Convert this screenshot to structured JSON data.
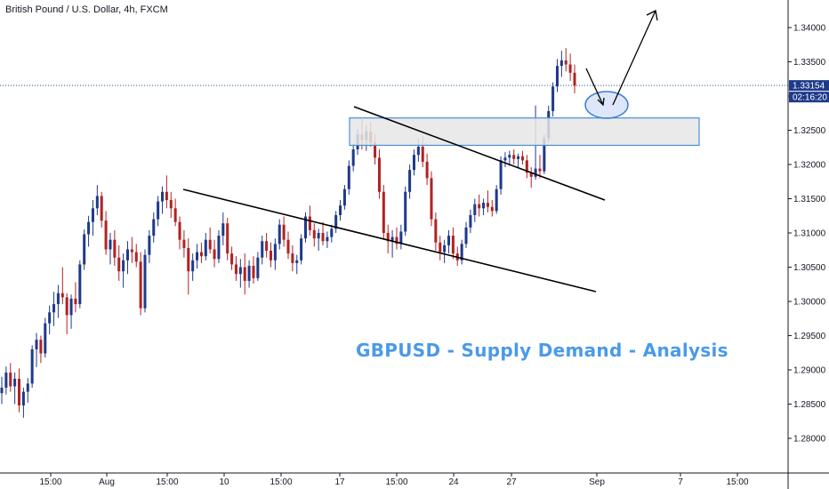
{
  "header": {
    "symbol_title": "British Pound / U.S. Dollar, 4h, FXCM"
  },
  "annotation": {
    "title": "GBPUSD - Supply Demand - Analysis"
  },
  "colors": {
    "up": "#1e3a8a",
    "down": "#b22222",
    "zone_border": "#4a90d9",
    "zone_fill": "#e6e6e6",
    "title": "#4a9ae8",
    "price_label_bg": "#1e3a8a"
  },
  "chart_data": {
    "type": "candlestick",
    "symbol": "GBPUSD",
    "timeframe": "4h",
    "ylim": [
      1.275,
      1.3425
    ],
    "y_ticks": [
      "1.28000",
      "1.28500",
      "1.29000",
      "1.29500",
      "1.30000",
      "1.30500",
      "1.31000",
      "1.31500",
      "1.32000",
      "1.32500",
      "1.33000",
      "1.33500",
      "1.34000"
    ],
    "x_ticks": [
      "15:00",
      "Aug",
      "15:00",
      "10",
      "15:00",
      "17",
      "15:00",
      "24",
      "27",
      "Sep",
      "7",
      "15:00"
    ],
    "last_price": "1.33154",
    "countdown": "02:16:20",
    "supply_demand_zone": [
      1.3228,
      1.3268
    ],
    "candles": [
      [
        1.2866,
        1.289,
        1.285,
        1.2874
      ],
      [
        1.2874,
        1.2905,
        1.2864,
        1.2896
      ],
      [
        1.2896,
        1.291,
        1.2868,
        1.2876
      ],
      [
        1.2876,
        1.2896,
        1.285,
        1.2887
      ],
      [
        1.2887,
        1.2902,
        1.2838,
        1.2848
      ],
      [
        1.2848,
        1.2874,
        1.283,
        1.2868
      ],
      [
        1.2868,
        1.2888,
        1.2852,
        1.288
      ],
      [
        1.288,
        1.2936,
        1.2874,
        1.293
      ],
      [
        1.293,
        1.2954,
        1.2904,
        1.2944
      ],
      [
        1.2944,
        1.295,
        1.291,
        1.2924
      ],
      [
        1.2924,
        1.2976,
        1.2918,
        1.2968
      ],
      [
        1.2968,
        1.2994,
        1.2952,
        1.2984
      ],
      [
        1.2984,
        1.3014,
        1.2964,
        1.2996
      ],
      [
        1.2996,
        1.3024,
        1.2976,
        1.3012
      ],
      [
        1.3012,
        1.305,
        1.2996,
        1.3006
      ],
      [
        1.3006,
        1.3012,
        1.2952,
        1.298
      ],
      [
        1.298,
        1.301,
        1.296,
        1.3004
      ],
      [
        1.3004,
        1.3028,
        1.2984,
        1.2996
      ],
      [
        1.2996,
        1.306,
        1.299,
        1.3054
      ],
      [
        1.3054,
        1.3105,
        1.3046,
        1.3098
      ],
      [
        1.3098,
        1.3125,
        1.308,
        1.3116
      ],
      [
        1.3116,
        1.3148,
        1.3096,
        1.3136
      ],
      [
        1.3136,
        1.317,
        1.3126,
        1.3154
      ],
      [
        1.3154,
        1.316,
        1.3108,
        1.3118
      ],
      [
        1.3118,
        1.3132,
        1.3068,
        1.3076
      ],
      [
        1.3076,
        1.31,
        1.3054,
        1.309
      ],
      [
        1.309,
        1.3104,
        1.3052,
        1.3064
      ],
      [
        1.3064,
        1.3082,
        1.303,
        1.3044
      ],
      [
        1.3044,
        1.307,
        1.302,
        1.306
      ],
      [
        1.306,
        1.3088,
        1.304,
        1.3076
      ],
      [
        1.3076,
        1.3094,
        1.3056,
        1.3072
      ],
      [
        1.3072,
        1.3084,
        1.305,
        1.3058
      ],
      [
        1.3058,
        1.3072,
        1.298,
        1.299
      ],
      [
        1.299,
        1.3076,
        1.2984,
        1.3068
      ],
      [
        1.3068,
        1.3104,
        1.3056,
        1.3096
      ],
      [
        1.3096,
        1.313,
        1.3086,
        1.312
      ],
      [
        1.312,
        1.3154,
        1.311,
        1.3146
      ],
      [
        1.3146,
        1.3168,
        1.3128,
        1.316
      ],
      [
        1.316,
        1.3184,
        1.3136,
        1.3148
      ],
      [
        1.3148,
        1.316,
        1.3122,
        1.3136
      ],
      [
        1.3136,
        1.315,
        1.311,
        1.3116
      ],
      [
        1.3116,
        1.3124,
        1.3076,
        1.309
      ],
      [
        1.309,
        1.3104,
        1.3064,
        1.3078
      ],
      [
        1.3078,
        1.3092,
        1.301,
        1.3044
      ],
      [
        1.3044,
        1.307,
        1.303,
        1.306
      ],
      [
        1.306,
        1.3084,
        1.3048,
        1.3072
      ],
      [
        1.3072,
        1.3086,
        1.3056,
        1.3066
      ],
      [
        1.3066,
        1.31,
        1.306,
        1.309
      ],
      [
        1.309,
        1.3108,
        1.307,
        1.3076
      ],
      [
        1.3076,
        1.309,
        1.305,
        1.3062
      ],
      [
        1.3062,
        1.3104,
        1.3056,
        1.3096
      ],
      [
        1.3096,
        1.313,
        1.3082,
        1.3114
      ],
      [
        1.3114,
        1.3122,
        1.306,
        1.307
      ],
      [
        1.307,
        1.308,
        1.3046,
        1.3054
      ],
      [
        1.3054,
        1.3066,
        1.303,
        1.304
      ],
      [
        1.304,
        1.3062,
        1.302,
        1.305
      ],
      [
        1.305,
        1.307,
        1.301,
        1.303
      ],
      [
        1.303,
        1.306,
        1.302,
        1.3052
      ],
      [
        1.3052,
        1.3066,
        1.3026,
        1.3034
      ],
      [
        1.3034,
        1.3072,
        1.303,
        1.3064
      ],
      [
        1.3064,
        1.3096,
        1.3054,
        1.3088
      ],
      [
        1.3088,
        1.31,
        1.3064,
        1.3074
      ],
      [
        1.3074,
        1.3086,
        1.305,
        1.306
      ],
      [
        1.306,
        1.3092,
        1.3046,
        1.3084
      ],
      [
        1.3084,
        1.312,
        1.3076,
        1.3112
      ],
      [
        1.3112,
        1.3124,
        1.308,
        1.309
      ],
      [
        1.309,
        1.3102,
        1.3062,
        1.307
      ],
      [
        1.307,
        1.3082,
        1.3044,
        1.3056
      ],
      [
        1.3056,
        1.3068,
        1.304,
        1.306
      ],
      [
        1.306,
        1.3098,
        1.3054,
        1.3092
      ],
      [
        1.3092,
        1.313,
        1.3086,
        1.3124
      ],
      [
        1.3124,
        1.314,
        1.3096,
        1.3104
      ],
      [
        1.3104,
        1.3114,
        1.308,
        1.3092
      ],
      [
        1.3092,
        1.3106,
        1.3074,
        1.31
      ],
      [
        1.31,
        1.3116,
        1.3082,
        1.3088
      ],
      [
        1.3088,
        1.3102,
        1.3078,
        1.3094
      ],
      [
        1.3094,
        1.3112,
        1.3086,
        1.3106
      ],
      [
        1.3106,
        1.3132,
        1.31,
        1.3126
      ],
      [
        1.3126,
        1.3148,
        1.3118,
        1.314
      ],
      [
        1.314,
        1.317,
        1.3134,
        1.3164
      ],
      [
        1.3164,
        1.3206,
        1.3156,
        1.3198
      ],
      [
        1.3198,
        1.323,
        1.319,
        1.3222
      ],
      [
        1.3222,
        1.3252,
        1.3214,
        1.3244
      ],
      [
        1.3244,
        1.3266,
        1.3222,
        1.3236
      ],
      [
        1.3236,
        1.3258,
        1.322,
        1.3248
      ],
      [
        1.3248,
        1.3262,
        1.3226,
        1.3232
      ],
      [
        1.3232,
        1.3244,
        1.32,
        1.321
      ],
      [
        1.321,
        1.3222,
        1.315,
        1.316
      ],
      [
        1.316,
        1.317,
        1.309,
        1.31
      ],
      [
        1.31,
        1.3112,
        1.307,
        1.3088
      ],
      [
        1.3088,
        1.3104,
        1.3064,
        1.3094
      ],
      [
        1.3094,
        1.3108,
        1.3076,
        1.3084
      ],
      [
        1.3084,
        1.3112,
        1.3076,
        1.3102
      ],
      [
        1.3102,
        1.3168,
        1.3096,
        1.316
      ],
      [
        1.316,
        1.32,
        1.315,
        1.3192
      ],
      [
        1.3192,
        1.3222,
        1.3184,
        1.3214
      ],
      [
        1.3214,
        1.3238,
        1.3204,
        1.3226
      ],
      [
        1.3226,
        1.3242,
        1.3196,
        1.3204
      ],
      [
        1.3204,
        1.3216,
        1.317,
        1.318
      ],
      [
        1.318,
        1.319,
        1.311,
        1.312
      ],
      [
        1.312,
        1.313,
        1.3074,
        1.3086
      ],
      [
        1.3086,
        1.3096,
        1.306,
        1.3072
      ],
      [
        1.3072,
        1.309,
        1.3056,
        1.3082
      ],
      [
        1.3082,
        1.3104,
        1.307,
        1.3096
      ],
      [
        1.3096,
        1.3108,
        1.3062,
        1.307
      ],
      [
        1.307,
        1.308,
        1.3052,
        1.306
      ],
      [
        1.306,
        1.309,
        1.3054,
        1.3084
      ],
      [
        1.3084,
        1.3116,
        1.3078,
        1.3108
      ],
      [
        1.3108,
        1.3134,
        1.31,
        1.3126
      ],
      [
        1.3126,
        1.315,
        1.3116,
        1.3142
      ],
      [
        1.3142,
        1.3156,
        1.3124,
        1.3136
      ],
      [
        1.3136,
        1.315,
        1.3126,
        1.3144
      ],
      [
        1.3144,
        1.3162,
        1.313,
        1.3138
      ],
      [
        1.3138,
        1.3148,
        1.3124,
        1.3132
      ],
      [
        1.3132,
        1.317,
        1.3128,
        1.3164
      ],
      [
        1.3164,
        1.3212,
        1.3156,
        1.3206
      ],
      [
        1.3206,
        1.3218,
        1.3196,
        1.321
      ],
      [
        1.321,
        1.322,
        1.3198,
        1.3214
      ],
      [
        1.3214,
        1.3222,
        1.32,
        1.3208
      ],
      [
        1.3208,
        1.3216,
        1.3196,
        1.3212
      ],
      [
        1.3212,
        1.322,
        1.32,
        1.3206
      ],
      [
        1.3206,
        1.3214,
        1.318,
        1.3188
      ],
      [
        1.3188,
        1.3196,
        1.3166,
        1.3182
      ],
      [
        1.3182,
        1.3286,
        1.3178,
        1.3194
      ],
      [
        1.3194,
        1.3214,
        1.318,
        1.319
      ],
      [
        1.319,
        1.3244,
        1.3186,
        1.3238
      ],
      [
        1.3238,
        1.3286,
        1.3232,
        1.3278
      ],
      [
        1.3278,
        1.332,
        1.327,
        1.3314
      ],
      [
        1.3314,
        1.3354,
        1.3306,
        1.3344
      ],
      [
        1.3344,
        1.3366,
        1.3328,
        1.3352
      ],
      [
        1.3352,
        1.337,
        1.3336,
        1.3346
      ],
      [
        1.3346,
        1.3362,
        1.3322,
        1.3334
      ],
      [
        1.3334,
        1.3346,
        1.3304,
        1.3315
      ]
    ]
  }
}
